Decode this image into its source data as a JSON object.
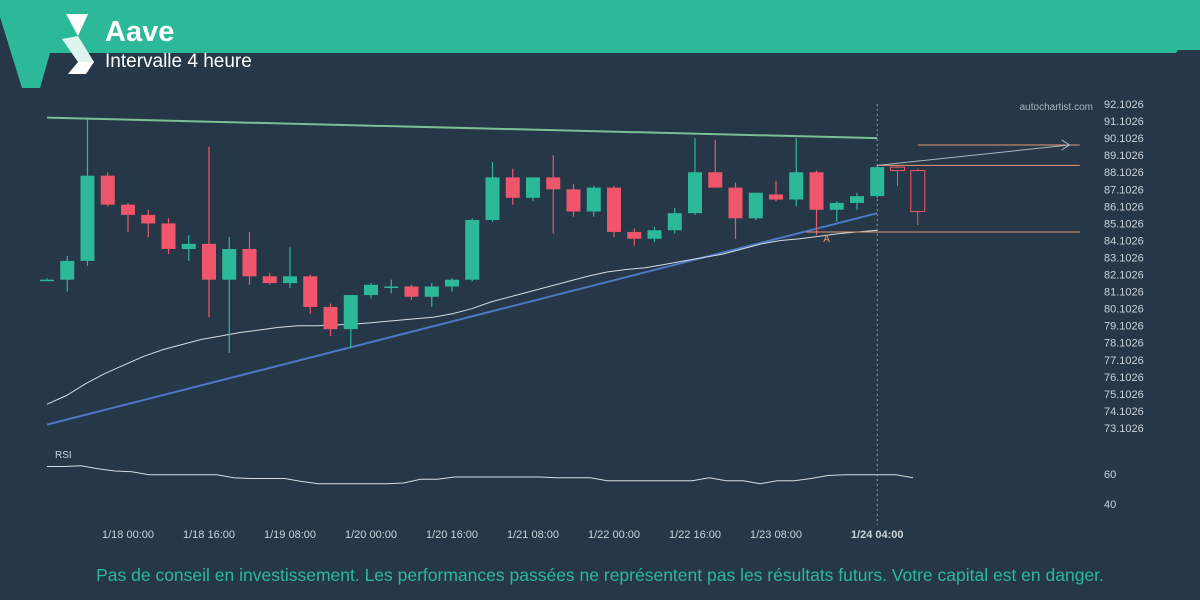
{
  "header": {
    "title": "Aave",
    "subtitle": "Intervalle 4 heure"
  },
  "watermark": "autochartist.com",
  "footer": {
    "disclaimer": "Pas de conseil en investissement. Les performances passées ne représentent pas les résultats futurs. Votre capital est en danger."
  },
  "colors": {
    "background": "#263847",
    "banner": "#2bb99a",
    "up": "#2bb99a",
    "down": "#f0566b",
    "resistance": "#7dbf94",
    "support": "#4c78c4",
    "level": "#e8956f",
    "moving_average": "#d6dbe0"
  },
  "chart_data": {
    "type": "candlestick",
    "title": "Aave",
    "subtitle": "Intervalle 4 heure",
    "y_ticks": [
      "92.1026",
      "91.1026",
      "90.1026",
      "89.1026",
      "88.1026",
      "87.1026",
      "86.1026",
      "85.1026",
      "84.1026",
      "83.1026",
      "82.1026",
      "81.1026",
      "80.1026",
      "79.1026",
      "78.1026",
      "77.1026",
      "76.1026",
      "75.1026",
      "74.1026",
      "73.1026"
    ],
    "ylim": [
      72.4,
      92.6
    ],
    "x_ticks": [
      "1/18 00:00",
      "1/18 16:00",
      "1/19 08:00",
      "1/20 00:00",
      "1/20 16:00",
      "1/21 08:00",
      "1/22 00:00",
      "1/22 16:00",
      "1/23 08:00",
      "1/24 04:00"
    ],
    "candles": [
      {
        "o": 81.8,
        "h": 81.9,
        "l": 81.8,
        "c": 81.8
      },
      {
        "o": 81.8,
        "h": 83.2,
        "l": 81.1,
        "c": 82.9
      },
      {
        "o": 82.9,
        "h": 91.2,
        "l": 82.6,
        "c": 87.9
      },
      {
        "o": 87.9,
        "h": 88.1,
        "l": 86.1,
        "c": 86.2
      },
      {
        "o": 86.2,
        "h": 86.3,
        "l": 84.6,
        "c": 85.6
      },
      {
        "o": 85.6,
        "h": 85.9,
        "l": 84.3,
        "c": 85.1
      },
      {
        "o": 85.1,
        "h": 85.4,
        "l": 83.3,
        "c": 83.6
      },
      {
        "o": 83.6,
        "h": 84.4,
        "l": 82.9,
        "c": 83.9
      },
      {
        "o": 83.9,
        "h": 89.6,
        "l": 79.6,
        "c": 81.8
      },
      {
        "o": 81.8,
        "h": 84.3,
        "l": 77.5,
        "c": 83.6
      },
      {
        "o": 83.6,
        "h": 84.6,
        "l": 81.5,
        "c": 82.0
      },
      {
        "o": 82.0,
        "h": 82.2,
        "l": 81.5,
        "c": 81.6
      },
      {
        "o": 81.6,
        "h": 83.7,
        "l": 81.3,
        "c": 82.0
      },
      {
        "o": 82.0,
        "h": 82.1,
        "l": 79.8,
        "c": 80.2
      },
      {
        "o": 80.2,
        "h": 80.4,
        "l": 78.5,
        "c": 78.9
      },
      {
        "o": 78.9,
        "h": 80.9,
        "l": 77.8,
        "c": 80.9
      },
      {
        "o": 80.9,
        "h": 81.6,
        "l": 80.7,
        "c": 81.5
      },
      {
        "o": 81.4,
        "h": 81.8,
        "l": 81.0,
        "c": 81.4
      },
      {
        "o": 81.4,
        "h": 81.5,
        "l": 80.6,
        "c": 80.8
      },
      {
        "o": 80.8,
        "h": 81.6,
        "l": 80.2,
        "c": 81.4
      },
      {
        "o": 81.4,
        "h": 81.9,
        "l": 81.1,
        "c": 81.8
      },
      {
        "o": 81.8,
        "h": 85.4,
        "l": 81.7,
        "c": 85.3
      },
      {
        "o": 85.3,
        "h": 88.7,
        "l": 85.2,
        "c": 87.8
      },
      {
        "o": 87.8,
        "h": 88.3,
        "l": 86.2,
        "c": 86.6
      },
      {
        "o": 86.6,
        "h": 87.7,
        "l": 86.4,
        "c": 87.8
      },
      {
        "o": 87.8,
        "h": 89.1,
        "l": 84.5,
        "c": 87.1
      },
      {
        "o": 87.1,
        "h": 87.4,
        "l": 85.5,
        "c": 85.8
      },
      {
        "o": 85.8,
        "h": 87.3,
        "l": 85.5,
        "c": 87.2
      },
      {
        "o": 87.2,
        "h": 87.3,
        "l": 84.3,
        "c": 84.6
      },
      {
        "o": 84.6,
        "h": 84.8,
        "l": 83.8,
        "c": 84.2
      },
      {
        "o": 84.2,
        "h": 84.9,
        "l": 84.0,
        "c": 84.7
      },
      {
        "o": 84.7,
        "h": 86.0,
        "l": 84.5,
        "c": 85.7
      },
      {
        "o": 85.7,
        "h": 90.1,
        "l": 85.6,
        "c": 88.1
      },
      {
        "o": 88.1,
        "h": 90.0,
        "l": 87.2,
        "c": 87.2
      },
      {
        "o": 87.2,
        "h": 87.5,
        "l": 84.2,
        "c": 85.4
      },
      {
        "o": 85.4,
        "h": 86.9,
        "l": 85.3,
        "c": 86.9
      },
      {
        "o": 86.8,
        "h": 87.6,
        "l": 86.4,
        "c": 86.5
      },
      {
        "o": 86.5,
        "h": 90.1,
        "l": 86.1,
        "c": 88.1
      },
      {
        "o": 88.1,
        "h": 88.2,
        "l": 84.4,
        "c": 85.9
      },
      {
        "o": 85.9,
        "h": 86.4,
        "l": 85.2,
        "c": 86.3
      },
      {
        "o": 86.3,
        "h": 86.9,
        "l": 85.9,
        "c": 86.7
      },
      {
        "o": 86.7,
        "h": 88.5,
        "l": 86.6,
        "c": 88.4
      }
    ],
    "forecast_candles": [
      {
        "o": 88.4,
        "h": 88.5,
        "l": 87.3,
        "c": 88.2
      },
      {
        "o": 88.2,
        "h": 88.3,
        "l": 85.0,
        "c": 85.8
      }
    ],
    "moving_average": [
      74.5,
      75.0,
      75.7,
      76.3,
      76.8,
      77.3,
      77.7,
      78.0,
      78.3,
      78.5,
      78.7,
      78.85,
      79.0,
      79.1,
      79.1,
      79.15,
      79.2,
      79.3,
      79.4,
      79.5,
      79.6,
      79.8,
      80.1,
      80.5,
      80.8,
      81.1,
      81.4,
      81.7,
      82.0,
      82.25,
      82.4,
      82.5,
      82.7,
      82.9,
      83.1,
      83.3,
      83.6,
      83.9,
      84.1,
      84.2,
      84.35,
      84.5,
      84.6,
      84.7
    ],
    "resistance_line": {
      "start": [
        0,
        91.3
      ],
      "end": [
        41,
        90.1
      ]
    },
    "support_line": {
      "start": [
        0,
        73.3
      ],
      "end": [
        41,
        85.7
      ]
    },
    "levels": [
      {
        "y": 88.5,
        "from": 41,
        "to": 51
      },
      {
        "y": 84.6,
        "from": 37.5,
        "to": 51
      },
      {
        "y": 89.7,
        "from": 43,
        "to": 51
      }
    ],
    "projection": {
      "from": [
        41,
        88.5
      ],
      "to": [
        50.5,
        89.7
      ]
    },
    "label_A": {
      "text": "A",
      "index": 38.5,
      "y": 84.3
    },
    "current_marker_index": 41,
    "rsi": {
      "label": "RSI",
      "ticks": [
        "60",
        "40"
      ],
      "ylim": [
        30,
        72
      ],
      "values": [
        65,
        65,
        65.5,
        63.5,
        62,
        61.5,
        59.5,
        59.5,
        59.5,
        59.5,
        59.5,
        57.5,
        57,
        57,
        57,
        55,
        53.5,
        53.5,
        53.5,
        53.5,
        53.5,
        54,
        56.5,
        56.5,
        58,
        58,
        58,
        58,
        58,
        58,
        57.5,
        57.5,
        57.5,
        55.5,
        55.5,
        55.5,
        55.5,
        55.5,
        55.5,
        57.5,
        55.5,
        55.5,
        53.5,
        55.5,
        55.5,
        57,
        59,
        59.5,
        59.5,
        59.5,
        59.5,
        57.5
      ]
    }
  }
}
